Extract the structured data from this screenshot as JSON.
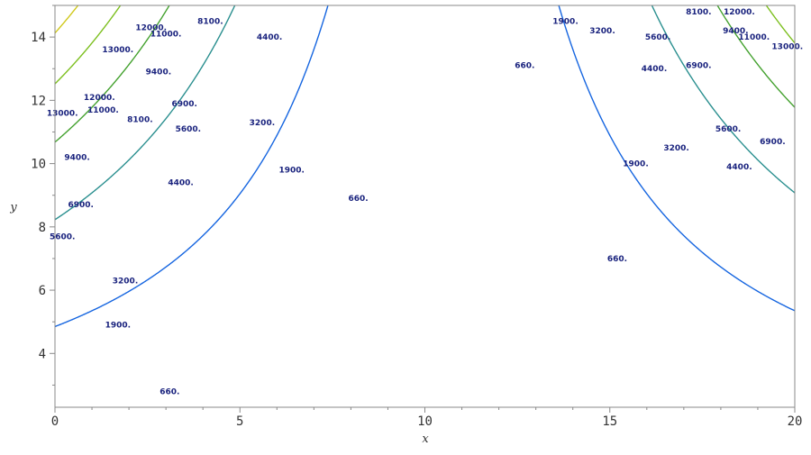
{
  "chart_data": {
    "type": "contour",
    "function": "z = (x - 10.5)^2 * y^2 / 4 + 0.5 * y^2",
    "xlim": [
      0,
      20
    ],
    "ylim": [
      2.3,
      15
    ],
    "xlabel": "x",
    "ylabel": "y",
    "x_ticks": [
      0,
      5,
      10,
      15,
      20
    ],
    "x_tick_labels": [
      "0",
      "5",
      "10",
      "15",
      "20"
    ],
    "y_ticks": [
      4,
      6,
      8,
      10,
      12,
      14
    ],
    "y_tick_labels": [
      "4",
      "6",
      "8",
      "10",
      "12",
      "14"
    ],
    "grid": false,
    "levels": [
      {
        "value": 660,
        "label": "660.",
        "color": "#1565e0"
      },
      {
        "value": 1900,
        "label": "1900.",
        "color": "#2a8f8f"
      },
      {
        "value": 3200,
        "label": "3200.",
        "color": "#43a12e"
      },
      {
        "value": 4400,
        "label": "4400.",
        "color": "#7cbf1e"
      },
      {
        "value": 5600,
        "label": "5600.",
        "color": "#d0c81a"
      },
      {
        "value": 6900,
        "label": "6900.",
        "color": "#f0b92a"
      },
      {
        "value": 8100,
        "label": "8100.",
        "color": "#f9a25c"
      },
      {
        "value": 9400,
        "label": "9400.",
        "color": "#f58a8a"
      },
      {
        "value": 11000,
        "label": "11000.",
        "color": "#f06aa0"
      },
      {
        "value": 12000,
        "label": "12000.",
        "color": "#e63c8c"
      },
      {
        "value": 13000,
        "label": "13000.",
        "color": "#d0202a"
      }
    ],
    "contour_labels": [
      {
        "level": 660,
        "x": 3.1,
        "y": 2.8
      },
      {
        "level": 660,
        "x": 8.2,
        "y": 8.9
      },
      {
        "level": 660,
        "x": 12.7,
        "y": 13.1
      },
      {
        "level": 660,
        "x": 15.2,
        "y": 7.0
      },
      {
        "level": 1900,
        "x": 1.7,
        "y": 4.9
      },
      {
        "level": 1900,
        "x": 6.4,
        "y": 9.8
      },
      {
        "level": 1900,
        "x": 13.8,
        "y": 14.5
      },
      {
        "level": 1900,
        "x": 15.7,
        "y": 10.0
      },
      {
        "level": 3200,
        "x": 1.9,
        "y": 6.3
      },
      {
        "level": 3200,
        "x": 5.6,
        "y": 11.3
      },
      {
        "level": 3200,
        "x": 14.8,
        "y": 14.2
      },
      {
        "level": 3200,
        "x": 16.8,
        "y": 10.5
      },
      {
        "level": 4400,
        "x": 3.4,
        "y": 9.4
      },
      {
        "level": 4400,
        "x": 5.8,
        "y": 14.0
      },
      {
        "level": 4400,
        "x": 16.2,
        "y": 13.0
      },
      {
        "level": 4400,
        "x": 18.5,
        "y": 9.9
      },
      {
        "level": 5600,
        "x": 0.2,
        "y": 7.7
      },
      {
        "level": 5600,
        "x": 3.6,
        "y": 11.1
      },
      {
        "level": 5600,
        "x": 16.3,
        "y": 14.0
      },
      {
        "level": 5600,
        "x": 18.2,
        "y": 11.1
      },
      {
        "level": 6900,
        "x": 0.7,
        "y": 8.7
      },
      {
        "level": 6900,
        "x": 3.5,
        "y": 11.9
      },
      {
        "level": 6900,
        "x": 17.4,
        "y": 13.1
      },
      {
        "level": 6900,
        "x": 19.4,
        "y": 10.7
      },
      {
        "level": 8100,
        "x": 2.3,
        "y": 11.4
      },
      {
        "level": 8100,
        "x": 4.2,
        "y": 14.5
      },
      {
        "level": 8100,
        "x": 17.4,
        "y": 14.8
      },
      {
        "level": 9400,
        "x": 0.6,
        "y": 10.2
      },
      {
        "level": 9400,
        "x": 2.8,
        "y": 12.9
      },
      {
        "level": 9400,
        "x": 18.4,
        "y": 14.2
      },
      {
        "level": 11000,
        "x": 1.3,
        "y": 11.7
      },
      {
        "level": 11000,
        "x": 3.0,
        "y": 14.1
      },
      {
        "level": 11000,
        "x": 18.9,
        "y": 14.0
      },
      {
        "level": 12000,
        "x": 1.2,
        "y": 12.1
      },
      {
        "level": 12000,
        "x": 2.6,
        "y": 14.3
      },
      {
        "level": 12000,
        "x": 18.5,
        "y": 14.8
      },
      {
        "level": 13000,
        "x": 0.2,
        "y": 11.6
      },
      {
        "level": 13000,
        "x": 1.7,
        "y": 13.6
      },
      {
        "level": 13000,
        "x": 19.8,
        "y": 13.7
      }
    ]
  }
}
